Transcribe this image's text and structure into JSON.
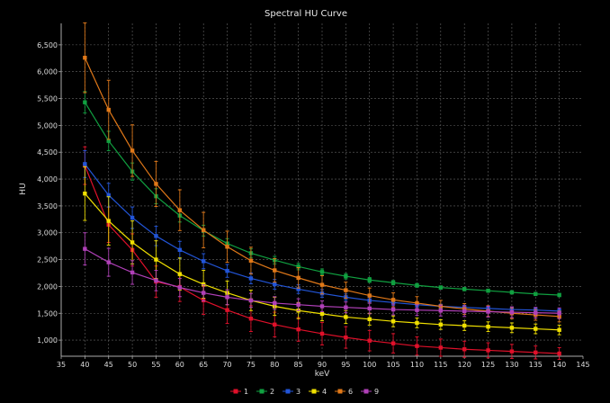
{
  "chart_data": {
    "type": "line",
    "title": "Spectral HU Curve",
    "xlabel": "keV",
    "ylabel": "HU",
    "xlim": [
      35,
      145
    ],
    "ylim": [
      700,
      6900
    ],
    "x_ticks": [
      35,
      40,
      45,
      50,
      55,
      60,
      65,
      70,
      75,
      80,
      85,
      90,
      95,
      100,
      105,
      110,
      115,
      120,
      125,
      130,
      135,
      140,
      145
    ],
    "y_ticks": [
      "1,000",
      "1,500",
      "2,000",
      "2,500",
      "3,000",
      "3,500",
      "4,000",
      "4,500",
      "5,000",
      "5,500",
      "6,000",
      "6,500"
    ],
    "y_tick_values": [
      1000,
      1500,
      2000,
      2500,
      3000,
      3500,
      4000,
      4500,
      5000,
      5500,
      6000,
      6500
    ],
    "grid": true,
    "legend_position": "bottom",
    "x": [
      40,
      45,
      50,
      55,
      60,
      65,
      70,
      75,
      80,
      85,
      90,
      95,
      100,
      105,
      110,
      115,
      120,
      125,
      130,
      135,
      140
    ],
    "series": [
      {
        "name": "1",
        "color": "#e0102a",
        "values": [
          4250,
          3150,
          2680,
          2090,
          1990,
          1740,
          1560,
          1400,
          1290,
          1200,
          1120,
          1050,
          990,
          940,
          890,
          860,
          830,
          810,
          790,
          770,
          750
        ],
        "errors": [
          350,
          330,
          300,
          290,
          270,
          260,
          250,
          240,
          230,
          220,
          210,
          200,
          190,
          180,
          170,
          160,
          150,
          140,
          130,
          120,
          110
        ]
      },
      {
        "name": "2",
        "color": "#10a040",
        "values": [
          5430,
          4710,
          4140,
          3680,
          3320,
          3040,
          2800,
          2620,
          2490,
          2370,
          2270,
          2190,
          2120,
          2070,
          2020,
          1980,
          1950,
          1920,
          1890,
          1860,
          1840
        ],
        "errors": [
          200,
          180,
          160,
          140,
          120,
          100,
          90,
          80,
          70,
          60,
          55,
          50,
          45,
          40,
          35,
          30,
          30,
          30,
          30,
          30,
          30
        ]
      },
      {
        "name": "3",
        "color": "#2255d8",
        "values": [
          4280,
          3700,
          3280,
          2940,
          2680,
          2470,
          2290,
          2150,
          2040,
          1950,
          1870,
          1800,
          1740,
          1700,
          1660,
          1630,
          1610,
          1590,
          1570,
          1560,
          1540
        ],
        "errors": [
          250,
          220,
          200,
          180,
          160,
          140,
          120,
          100,
          90,
          80,
          70,
          60,
          55,
          50,
          45,
          40,
          40,
          40,
          40,
          40,
          40
        ]
      },
      {
        "name": "4",
        "color": "#f0e000",
        "values": [
          3730,
          3220,
          2820,
          2500,
          2230,
          2040,
          1880,
          1740,
          1630,
          1550,
          1490,
          1430,
          1390,
          1350,
          1320,
          1290,
          1270,
          1250,
          1230,
          1210,
          1190
        ],
        "errors": [
          500,
          450,
          400,
          350,
          300,
          260,
          220,
          190,
          170,
          150,
          130,
          120,
          110,
          100,
          90,
          90,
          90,
          90,
          90,
          90,
          90
        ]
      },
      {
        "name": "6",
        "color": "#e07818",
        "values": [
          6260,
          5290,
          4530,
          3910,
          3420,
          3050,
          2740,
          2480,
          2300,
          2160,
          2030,
          1930,
          1830,
          1750,
          1690,
          1630,
          1580,
          1540,
          1500,
          1470,
          1440
        ],
        "errors": [
          650,
          550,
          480,
          420,
          380,
          330,
          290,
          250,
          220,
          190,
          170,
          150,
          140,
          130,
          120,
          110,
          100,
          100,
          100,
          100,
          100
        ]
      },
      {
        "name": "9",
        "color": "#b040b8",
        "values": [
          2700,
          2450,
          2260,
          2110,
          1980,
          1880,
          1800,
          1740,
          1690,
          1660,
          1630,
          1610,
          1590,
          1570,
          1560,
          1550,
          1540,
          1530,
          1520,
          1510,
          1500
        ],
        "errors": [
          300,
          260,
          220,
          190,
          170,
          150,
          140,
          130,
          120,
          110,
          100,
          100,
          100,
          100,
          100,
          100,
          100,
          100,
          100,
          100,
          100
        ]
      }
    ]
  }
}
